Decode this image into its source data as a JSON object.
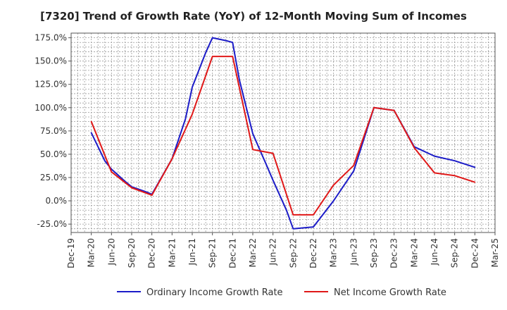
{
  "chart_data": {
    "type": "line",
    "title": "[7320]  Trend of Growth Rate (YoY) of 12-Month Moving Sum of Incomes",
    "xlabel": "",
    "ylabel": "",
    "x": [
      "Dec-19",
      "Mar-20",
      "Jun-20",
      "Sep-20",
      "Dec-20",
      "Mar-21",
      "Jun-21",
      "Sep-21",
      "Dec-21",
      "Mar-22",
      "Jun-22",
      "Sep-22",
      "Dec-22",
      "Mar-23",
      "Jun-23",
      "Sep-23",
      "Dec-23",
      "Mar-24",
      "Jun-24",
      "Sep-24",
      "Dec-24",
      "Mar-25"
    ],
    "x_tick_labels": [
      "Dec-19",
      "Mar-20",
      "Jun-20",
      "Sep-20",
      "Dec-20",
      "Mar-21",
      "Jun-21",
      "Sep-21",
      "Dec-21",
      "Mar-22",
      "Jun-22",
      "Sep-22",
      "Dec-22",
      "Mar-23",
      "Jun-23",
      "Sep-23",
      "Dec-23",
      "Mar-24",
      "Jun-24",
      "Sep-24",
      "Dec-24",
      "Mar-25"
    ],
    "y_ticks": [
      175,
      150,
      125,
      100,
      75,
      50,
      25,
      0,
      -25
    ],
    "y_tick_labels": [
      "175.0%",
      "150.0%",
      "125.0%",
      "100.0%",
      "75.0%",
      "50.0%",
      "25.0%",
      "0.0%",
      "-25.0%"
    ],
    "ylim": [
      -34,
      180
    ],
    "grid": true,
    "legend_placement": "bottom",
    "series": [
      {
        "name": "Ordinary Income Growth Rate",
        "color": "#1c1cc8",
        "points": [
          [
            "Mar-20",
            73
          ],
          [
            "May-20",
            43
          ],
          [
            "Jun-20",
            34
          ],
          [
            "Aug-20",
            21
          ],
          [
            "Sep-20",
            15
          ],
          [
            "Nov-20",
            10
          ],
          [
            "Dec-20",
            7
          ],
          [
            "Mar-21",
            45
          ],
          [
            "May-21",
            88
          ],
          [
            "Jun-21",
            122
          ],
          [
            "Aug-21",
            159
          ],
          [
            "Sep-21",
            175
          ],
          [
            "Nov-21",
            172
          ],
          [
            "Dec-21",
            170
          ],
          [
            "Jan-22",
            130
          ],
          [
            "Mar-22",
            72
          ],
          [
            "May-22",
            39
          ],
          [
            "Jun-22",
            22
          ],
          [
            "Aug-22",
            -10
          ],
          [
            "Sep-22",
            -30
          ],
          [
            "Dec-22",
            -28
          ],
          [
            "Mar-23",
            0
          ],
          [
            "Jun-23",
            32
          ],
          [
            "Sep-23",
            100
          ],
          [
            "Dec-23",
            97
          ],
          [
            "Mar-24",
            58
          ],
          [
            "Jun-24",
            48
          ],
          [
            "Sep-24",
            43
          ],
          [
            "Dec-24",
            36
          ]
        ]
      },
      {
        "name": "Net Income Growth Rate",
        "color": "#e01818",
        "points": [
          [
            "Mar-20",
            85
          ],
          [
            "Jun-20",
            31
          ],
          [
            "Sep-20",
            14
          ],
          [
            "Dec-20",
            6
          ],
          [
            "Mar-21",
            45
          ],
          [
            "Jun-21",
            93
          ],
          [
            "Sep-21",
            155
          ],
          [
            "Dec-21",
            155
          ],
          [
            "Mar-22",
            55
          ],
          [
            "Jun-22",
            51
          ],
          [
            "Sep-22",
            -15
          ],
          [
            "Dec-22",
            -15
          ],
          [
            "Mar-23",
            17
          ],
          [
            "Jun-23",
            38
          ],
          [
            "Sep-23",
            100
          ],
          [
            "Dec-23",
            97
          ],
          [
            "Mar-24",
            57
          ],
          [
            "Jun-24",
            30
          ],
          [
            "Sep-24",
            27
          ],
          [
            "Dec-24",
            20
          ]
        ]
      }
    ]
  }
}
